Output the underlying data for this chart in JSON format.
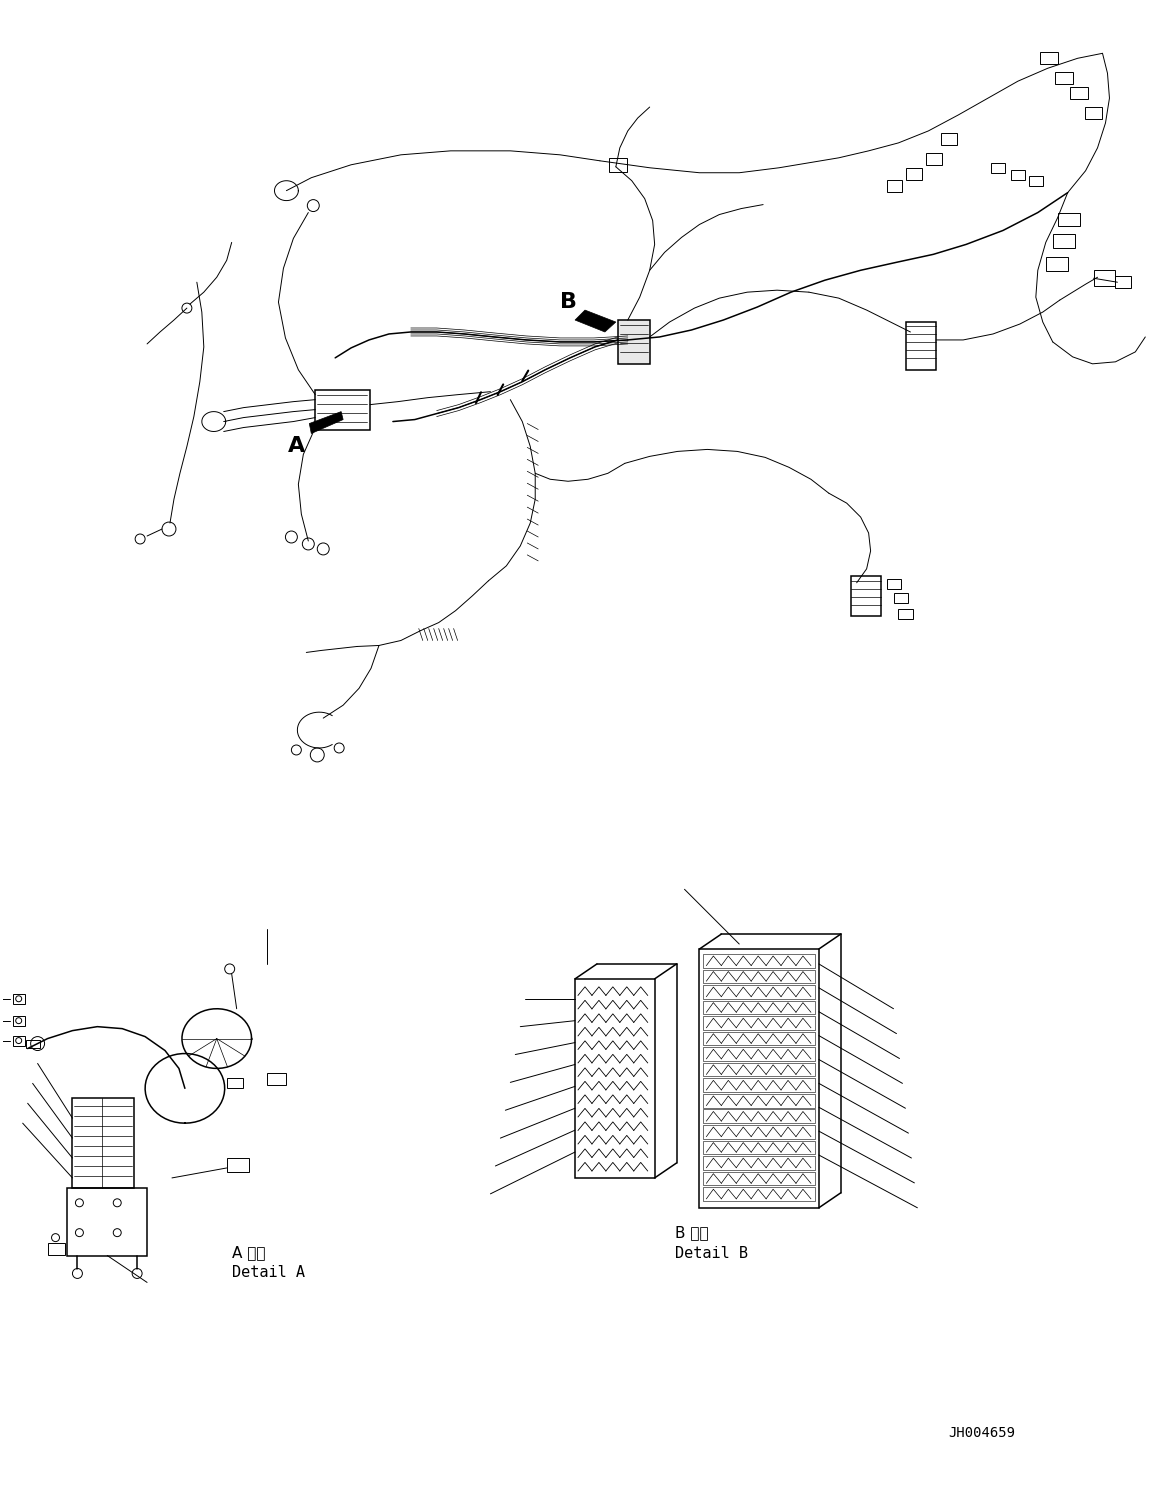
{
  "bg_color": "#ffffff",
  "line_color": "#000000",
  "fig_width": 11.63,
  "fig_height": 14.88,
  "dpi": 100,
  "label_A": "A",
  "label_B": "B",
  "detail_A_jp": "A 詳細",
  "detail_A_en": "Detail A",
  "detail_B_jp": "B 詳細",
  "detail_B_en": "Detail B",
  "doc_number": "JH004659"
}
